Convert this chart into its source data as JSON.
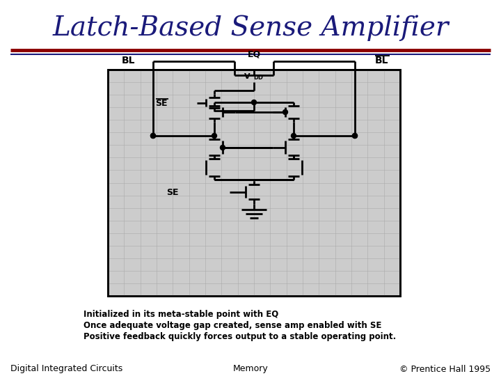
{
  "title": "Latch-Based Sense Amplifier",
  "title_color": "#1a1a7a",
  "title_fontsize": 28,
  "bg_color": "#ffffff",
  "line1_color": "#8b0000",
  "line2_color": "#1a1a7a",
  "footer_left": "Digital Integrated Circuits",
  "footer_center": "Memory",
  "footer_right": "© Prentice Hall 1995",
  "footer_color": "#000000",
  "footer_fontsize": 9,
  "bullets": [
    "Initialized in its meta-stable point with EQ",
    "Once adequate voltage gap created, sense amp enabled with SE",
    "Positive feedback quickly forces output to a stable operating point."
  ],
  "bullet_fontsize": 8.5
}
